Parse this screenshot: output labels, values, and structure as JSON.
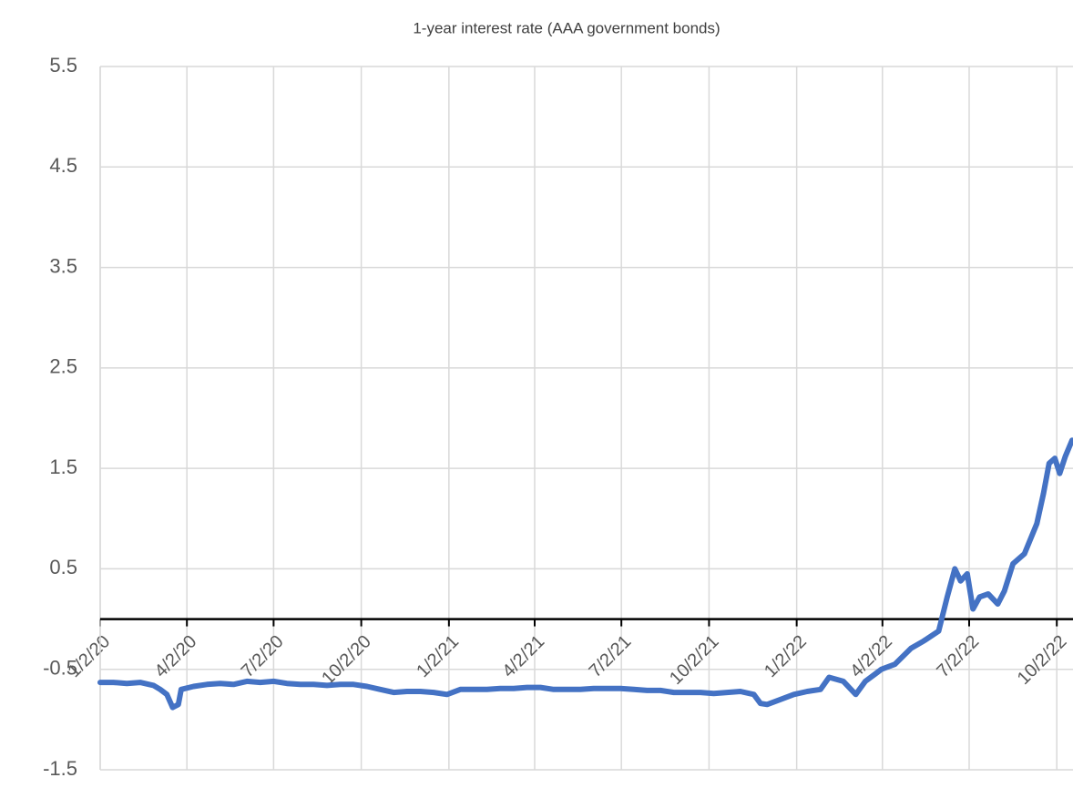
{
  "chart_data": {
    "type": "line",
    "title": "1-year interest rate (AAA government bonds)",
    "x": [
      "2020-01-02",
      "2020-01-16",
      "2020-01-30",
      "2020-02-13",
      "2020-02-27",
      "2020-03-05",
      "2020-03-12",
      "2020-03-18",
      "2020-03-24",
      "2020-03-27",
      "2020-04-09",
      "2020-04-23",
      "2020-05-07",
      "2020-05-21",
      "2020-06-04",
      "2020-06-18",
      "2020-07-02",
      "2020-07-16",
      "2020-07-30",
      "2020-08-13",
      "2020-08-27",
      "2020-09-10",
      "2020-09-24",
      "2020-10-08",
      "2020-10-22",
      "2020-11-05",
      "2020-11-19",
      "2020-12-03",
      "2020-12-17",
      "2020-12-31",
      "2021-01-14",
      "2021-01-28",
      "2021-02-11",
      "2021-02-25",
      "2021-03-11",
      "2021-03-25",
      "2021-04-08",
      "2021-04-22",
      "2021-05-06",
      "2021-05-20",
      "2021-06-03",
      "2021-06-17",
      "2021-07-01",
      "2021-07-15",
      "2021-07-29",
      "2021-08-12",
      "2021-08-26",
      "2021-09-09",
      "2021-09-23",
      "2021-10-07",
      "2021-10-21",
      "2021-11-04",
      "2021-11-18",
      "2021-11-25",
      "2021-12-02",
      "2021-12-16",
      "2021-12-30",
      "2022-01-13",
      "2022-01-27",
      "2022-02-05",
      "2022-02-20",
      "2022-03-05",
      "2022-03-15",
      "2022-03-25",
      "2022-04-01",
      "2022-04-15",
      "2022-05-02",
      "2022-05-15",
      "2022-05-31",
      "2022-06-09",
      "2022-06-17",
      "2022-06-23",
      "2022-06-30",
      "2022-07-06",
      "2022-07-13",
      "2022-07-22",
      "2022-08-01",
      "2022-08-08",
      "2022-08-17",
      "2022-08-29",
      "2022-09-11",
      "2022-09-18",
      "2022-09-24",
      "2022-09-30",
      "2022-10-05",
      "2022-10-11",
      "2022-10-18"
    ],
    "values": [
      -0.63,
      -0.63,
      -0.64,
      -0.63,
      -0.66,
      -0.7,
      -0.75,
      -0.88,
      -0.85,
      -0.7,
      -0.67,
      -0.65,
      -0.64,
      -0.65,
      -0.62,
      -0.63,
      -0.62,
      -0.64,
      -0.65,
      -0.65,
      -0.66,
      -0.65,
      -0.65,
      -0.67,
      -0.7,
      -0.73,
      -0.72,
      -0.72,
      -0.73,
      -0.75,
      -0.7,
      -0.7,
      -0.7,
      -0.69,
      -0.69,
      -0.68,
      -0.68,
      -0.7,
      -0.7,
      -0.7,
      -0.69,
      -0.69,
      -0.69,
      -0.7,
      -0.71,
      -0.71,
      -0.73,
      -0.73,
      -0.73,
      -0.74,
      -0.73,
      -0.72,
      -0.75,
      -0.84,
      -0.85,
      -0.8,
      -0.75,
      -0.72,
      -0.7,
      -0.58,
      -0.62,
      -0.75,
      -0.62,
      -0.55,
      -0.5,
      -0.45,
      -0.29,
      -0.22,
      -0.12,
      0.22,
      0.5,
      0.38,
      0.45,
      0.1,
      0.22,
      0.25,
      0.15,
      0.28,
      0.55,
      0.65,
      0.95,
      1.25,
      1.55,
      1.6,
      1.45,
      1.62,
      1.78
    ],
    "color": "#4472c4",
    "xlim": [
      "2020-01-02",
      "2022-10-19"
    ],
    "xticks": [
      {
        "value": "2020-01-02",
        "label": "1/2/20"
      },
      {
        "value": "2020-04-02",
        "label": "4/2/20"
      },
      {
        "value": "2020-07-02",
        "label": "7/2/20"
      },
      {
        "value": "2020-10-02",
        "label": "10/2/20"
      },
      {
        "value": "2021-01-02",
        "label": "1/2/21"
      },
      {
        "value": "2021-04-02",
        "label": "4/2/21"
      },
      {
        "value": "2021-07-02",
        "label": "7/2/21"
      },
      {
        "value": "2021-10-02",
        "label": "10/2/21"
      },
      {
        "value": "2022-01-02",
        "label": "1/2/22"
      },
      {
        "value": "2022-04-02",
        "label": "4/2/22"
      },
      {
        "value": "2022-07-02",
        "label": "7/2/22"
      },
      {
        "value": "2022-10-02",
        "label": "10/2/22"
      }
    ],
    "ylim": [
      -1.5,
      5.5
    ],
    "yticks": [
      -1.5,
      -0.5,
      0.5,
      1.5,
      2.5,
      3.5,
      4.5,
      5.5
    ],
    "grid": true
  }
}
